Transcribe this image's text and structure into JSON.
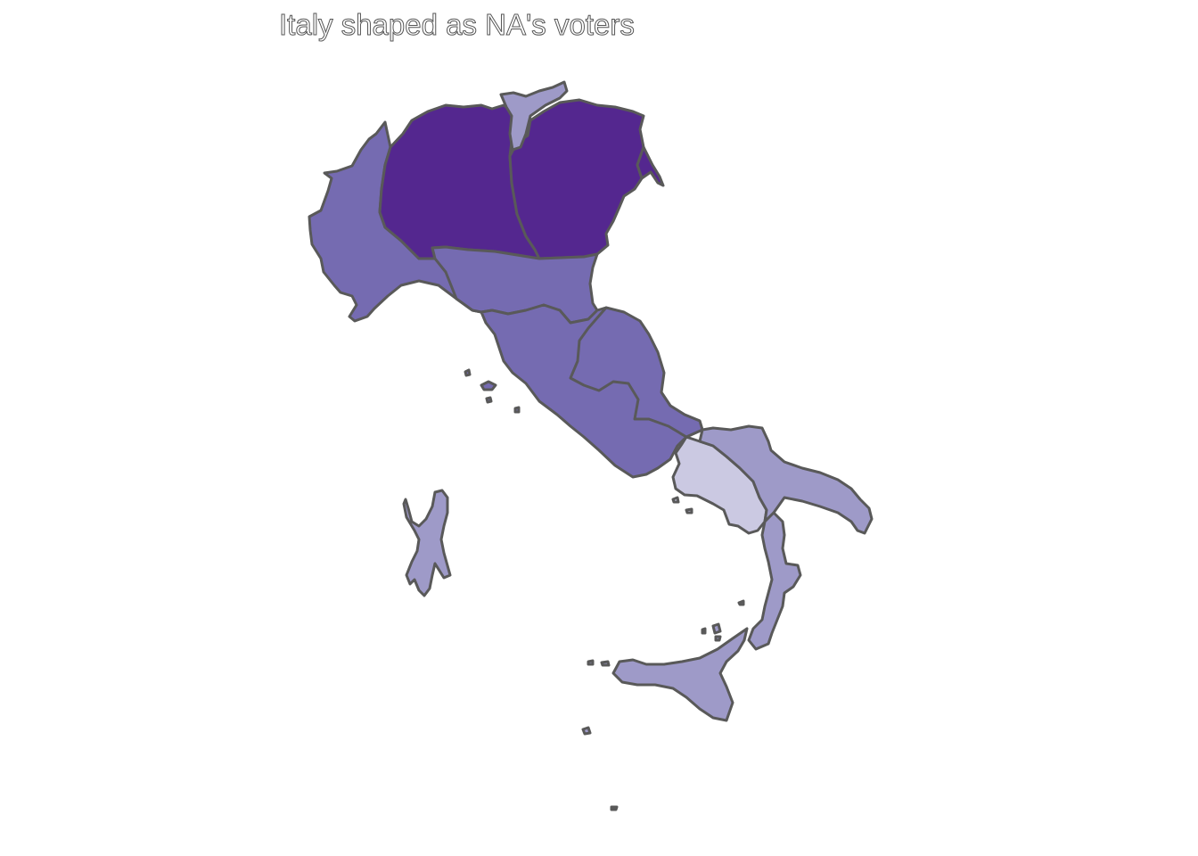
{
  "title": "Italy shaped as NA's voters",
  "palette": {
    "darkest": "#54278f",
    "dark": "#756bb1",
    "medium": "#9e9ac8",
    "light": "#cbc9e2",
    "border": "#595959",
    "background": "#ffffff"
  },
  "regions": [
    {
      "name": "north-west-lombardy",
      "level": "darkest"
    },
    {
      "name": "north-east-veneto-friuli",
      "level": "darkest"
    },
    {
      "name": "trentino-alto-adige",
      "level": "medium"
    },
    {
      "name": "piedmont-liguria",
      "level": "dark"
    },
    {
      "name": "emilia-romagna",
      "level": "dark"
    },
    {
      "name": "tuscany-umbria-lazio",
      "level": "dark"
    },
    {
      "name": "marche-abruzzo-molise",
      "level": "dark"
    },
    {
      "name": "campania",
      "level": "light"
    },
    {
      "name": "apulia-basilicata",
      "level": "medium"
    },
    {
      "name": "calabria",
      "level": "medium"
    },
    {
      "name": "sicily",
      "level": "medium"
    },
    {
      "name": "sardinia",
      "level": "medium"
    }
  ]
}
